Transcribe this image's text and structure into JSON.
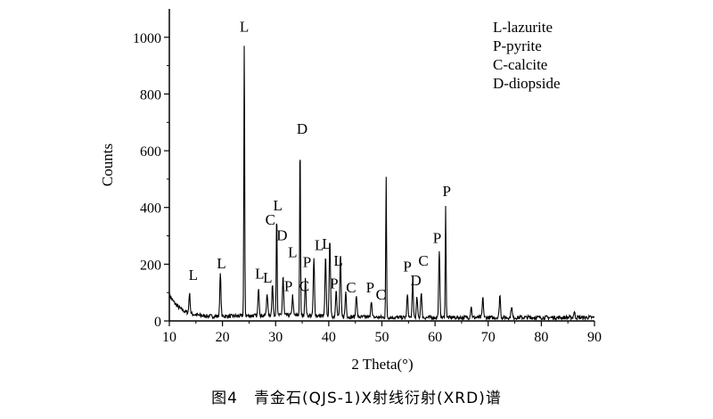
{
  "caption": "图4　青金石(QJS-1)X射线衍射(XRD)谱",
  "chart_data": {
    "type": "line",
    "xlabel": "2 Theta(°)",
    "ylabel": "Counts",
    "xlim": [
      10,
      90
    ],
    "ylim": [
      0,
      1100
    ],
    "xticks": [
      10,
      20,
      30,
      40,
      50,
      60,
      70,
      80,
      90
    ],
    "yticks": [
      0,
      200,
      400,
      600,
      800,
      1000
    ],
    "grid": false,
    "legend": {
      "placement": "top-right",
      "entries": [
        "L-lazurite",
        "P-pyrite",
        "C-calcite",
        "D-diopside"
      ]
    },
    "peaks": [
      {
        "x": 13.8,
        "y": 70
      },
      {
        "x": 19.6,
        "y": 150
      },
      {
        "x": 24.1,
        "y": 980
      },
      {
        "x": 26.8,
        "y": 100
      },
      {
        "x": 28.4,
        "y": 80
      },
      {
        "x": 29.4,
        "y": 110
      },
      {
        "x": 30.2,
        "y": 370
      },
      {
        "x": 31.4,
        "y": 140
      },
      {
        "x": 33.2,
        "y": 70
      },
      {
        "x": 34.6,
        "y": 620
      },
      {
        "x": 35.6,
        "y": 130
      },
      {
        "x": 37.2,
        "y": 200
      },
      {
        "x": 39.4,
        "y": 210
      },
      {
        "x": 40.2,
        "y": 280
      },
      {
        "x": 41.4,
        "y": 100
      },
      {
        "x": 42.2,
        "y": 220
      },
      {
        "x": 43.2,
        "y": 90
      },
      {
        "x": 45.2,
        "y": 80
      },
      {
        "x": 48.0,
        "y": 60
      },
      {
        "x": 50.8,
        "y": 490
      },
      {
        "x": 54.8,
        "y": 80
      },
      {
        "x": 55.8,
        "y": 120
      },
      {
        "x": 56.6,
        "y": 70
      },
      {
        "x": 57.4,
        "y": 90
      },
      {
        "x": 60.8,
        "y": 230
      },
      {
        "x": 62.0,
        "y": 390
      },
      {
        "x": 66.8,
        "y": 40
      },
      {
        "x": 69.0,
        "y": 70
      },
      {
        "x": 72.2,
        "y": 80
      },
      {
        "x": 74.4,
        "y": 40
      },
      {
        "x": 86.2,
        "y": 20
      }
    ],
    "annotations": [
      {
        "text": "L",
        "x": 24.1,
        "y": 1020
      },
      {
        "text": "D",
        "x": 35.0,
        "y": 660
      },
      {
        "text": "L",
        "x": 14.5,
        "y": 145
      },
      {
        "text": "L",
        "x": 19.8,
        "y": 185
      },
      {
        "text": "L",
        "x": 27.0,
        "y": 150
      },
      {
        "text": "L",
        "x": 28.5,
        "y": 135
      },
      {
        "text": "C",
        "x": 29.0,
        "y": 340
      },
      {
        "text": "L",
        "x": 30.4,
        "y": 390
      },
      {
        "text": "D",
        "x": 31.2,
        "y": 285
      },
      {
        "text": "P",
        "x": 32.4,
        "y": 105
      },
      {
        "text": "L",
        "x": 33.2,
        "y": 225
      },
      {
        "text": "P",
        "x": 35.9,
        "y": 190
      },
      {
        "text": "C",
        "x": 35.4,
        "y": 105
      },
      {
        "text": "L",
        "x": 38.2,
        "y": 250
      },
      {
        "text": "L",
        "x": 39.6,
        "y": 255
      },
      {
        "text": "P",
        "x": 41.0,
        "y": 115
      },
      {
        "text": "L",
        "x": 41.8,
        "y": 195
      },
      {
        "text": "C",
        "x": 44.2,
        "y": 100
      },
      {
        "text": "P",
        "x": 47.8,
        "y": 100
      },
      {
        "text": "C",
        "x": 49.8,
        "y": 75
      },
      {
        "text": "P",
        "x": 54.8,
        "y": 175
      },
      {
        "text": "D",
        "x": 56.4,
        "y": 125
      },
      {
        "text": "C",
        "x": 57.8,
        "y": 195
      },
      {
        "text": "P",
        "x": 60.4,
        "y": 275
      },
      {
        "text": "P",
        "x": 62.2,
        "y": 440
      }
    ]
  },
  "colors": {
    "ink": "#000000",
    "background": "#ffffff"
  }
}
